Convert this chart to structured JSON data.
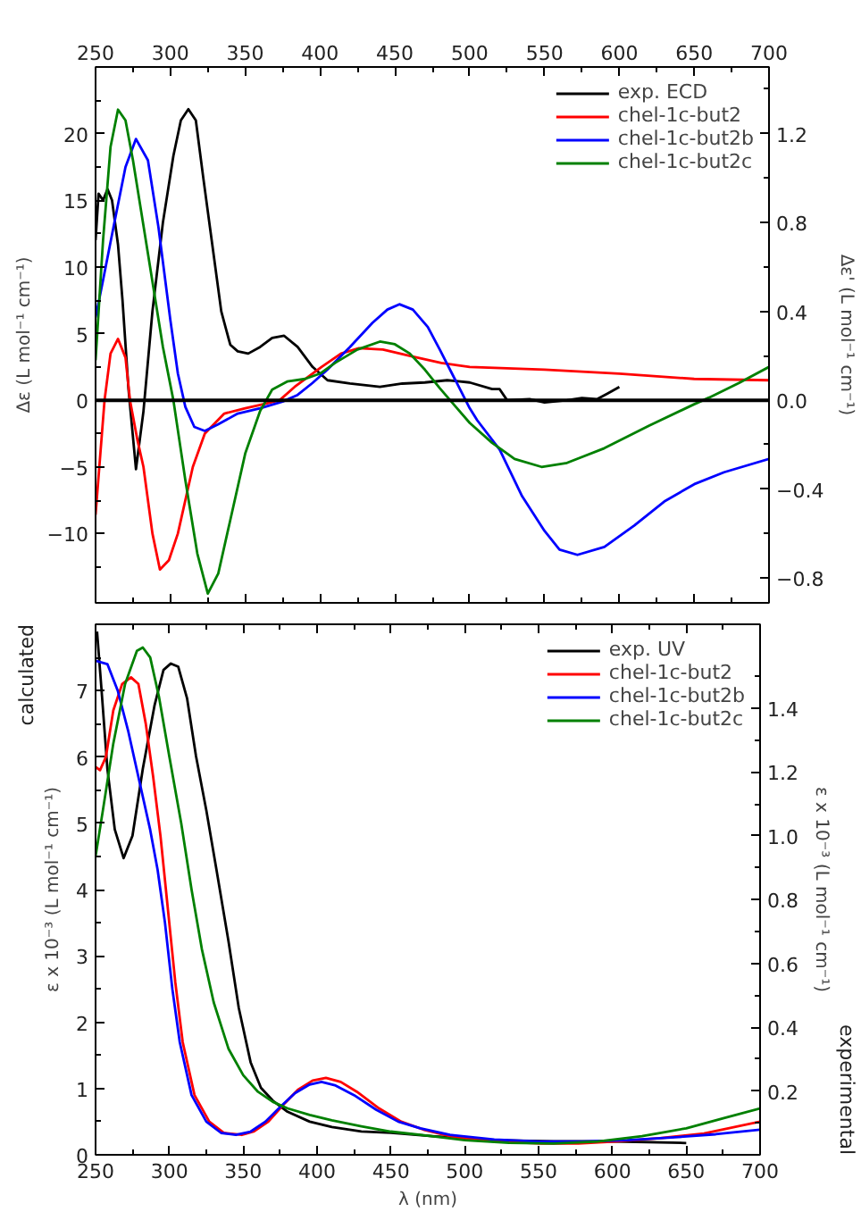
{
  "chart_data": [
    {
      "type": "line",
      "ylabel": "Δε (L mol⁻¹ cm⁻¹)",
      "y2label": "Δε' (L mol⁻¹ cm⁻¹)",
      "xlim": [
        250,
        700
      ],
      "xticks": [
        250,
        300,
        350,
        400,
        450,
        500,
        550,
        600,
        650,
        700
      ],
      "ylim": [
        -15.2,
        25
      ],
      "yticks": [
        -10,
        -5,
        0,
        5,
        10,
        15,
        20
      ],
      "y2lim": [
        -0.912,
        1.5
      ],
      "y2ticks": [
        -0.8,
        -0.4,
        {
          "value": 0,
          "label": "0.0"
        },
        0.4,
        0.8,
        1.2
      ],
      "legend": "top right",
      "ref_lines": [
        {
          "axis": "y",
          "value": 0,
          "color": "#000000"
        }
      ],
      "series": [
        {
          "name": "exp. ECD",
          "color": "#000000",
          "axis": "y2",
          "x": [
            250,
            252,
            255,
            258,
            261,
            265,
            268,
            272,
            277,
            282,
            288,
            295,
            302,
            307,
            312,
            317,
            322,
            328,
            334,
            340,
            345,
            352,
            360,
            368,
            376,
            385,
            395,
            405,
            420,
            440,
            455,
            470,
            485,
            500,
            515,
            520,
            525,
            540,
            550,
            565,
            575,
            585,
            592,
            600
          ],
          "values": [
            0.72,
            0.93,
            0.9,
            0.95,
            0.9,
            0.7,
            0.45,
            0.05,
            -0.31,
            -0.05,
            0.4,
            0.8,
            1.1,
            1.26,
            1.31,
            1.26,
            1.0,
            0.7,
            0.4,
            0.25,
            0.22,
            0.21,
            0.24,
            0.28,
            0.29,
            0.24,
            0.15,
            0.09,
            0.075,
            0.06,
            0.075,
            0.08,
            0.09,
            0.08,
            0.05,
            0.05,
            0.0,
            0.005,
            -0.01,
            0.0,
            0.01,
            0.005,
            0.03,
            0.06
          ]
        },
        {
          "name": "chel-1c-but2",
          "color": "#ff0000",
          "x": [
            250,
            256,
            260,
            265,
            270,
            273,
            278,
            282,
            288,
            293,
            299,
            305,
            315,
            323,
            336,
            350,
            362,
            373,
            383,
            401,
            414,
            426,
            442,
            461,
            481,
            500,
            550,
            600,
            650,
            700
          ],
          "values": [
            -8.6,
            0,
            3.5,
            4.6,
            3.2,
            0,
            -3,
            -5,
            -10,
            -12.7,
            -12,
            -10,
            -5,
            -2.5,
            -1,
            -0.6,
            -0.3,
            0,
            1,
            2.5,
            3.5,
            3.9,
            3.8,
            3.3,
            2.8,
            2.5,
            2.3,
            2.0,
            1.6,
            1.5
          ]
        },
        {
          "name": "chel-1c-but2b",
          "color": "#0000ff",
          "x": [
            250,
            255,
            262,
            270,
            277,
            285,
            292,
            300,
            305,
            310,
            316,
            323,
            332,
            345,
            360,
            375,
            385,
            395,
            405,
            420,
            435,
            445,
            453,
            462,
            472,
            480,
            490,
            500,
            505,
            520,
            535,
            550,
            560,
            572,
            590,
            610,
            630,
            650,
            670,
            700
          ],
          "values": [
            6.2,
            9,
            13,
            17.5,
            19.6,
            18,
            13,
            6,
            2,
            -0.5,
            -2,
            -2.3,
            -1.8,
            -1,
            -0.6,
            -0.1,
            0.4,
            1.3,
            2.3,
            4,
            5.8,
            6.8,
            7.2,
            6.8,
            5.5,
            3.8,
            1.6,
            -0.6,
            -1.5,
            -3.7,
            -7.2,
            -9.8,
            -11.2,
            -11.6,
            -11,
            -9.4,
            -7.6,
            -6.3,
            -5.4,
            -4.4
          ]
        },
        {
          "name": "chel-1c-but2c",
          "color": "#008000",
          "x": [
            250,
            255,
            260,
            265,
            270,
            275,
            285,
            295,
            302,
            310,
            318,
            325,
            332,
            340,
            350,
            360,
            368,
            378,
            390,
            400,
            410,
            425,
            440,
            450,
            460,
            470,
            480,
            490,
            500,
            515,
            530,
            548,
            565,
            590,
            620,
            650,
            660,
            680,
            700
          ],
          "values": [
            3,
            12,
            19,
            21.8,
            21,
            18,
            11,
            4,
            0,
            -6,
            -11.5,
            -14.5,
            -13,
            -9,
            -4,
            -0.8,
            0.8,
            1.4,
            1.6,
            2.0,
            2.8,
            3.8,
            4.4,
            4.2,
            3.5,
            2.3,
            0.9,
            -0.4,
            -1.7,
            -3.2,
            -4.4,
            -5.0,
            -4.7,
            -3.6,
            -1.9,
            -0.3,
            0.2,
            1.3,
            2.5
          ]
        }
      ]
    },
    {
      "type": "line",
      "xlabel": "λ (nm)",
      "ylabel": "ε x 10⁻³ (L mol⁻¹ cm⁻¹)",
      "y2label": "ε x 10⁻³ (L mol⁻¹ cm⁻¹)",
      "xlim": [
        250,
        700
      ],
      "xticks": [
        250,
        300,
        350,
        400,
        450,
        500,
        550,
        600,
        650,
        700
      ],
      "ylim": [
        0,
        8.0
      ],
      "yticks": [
        0,
        1,
        2,
        3,
        4,
        5,
        6,
        7
      ],
      "y2lim": [
        0,
        1.663
      ],
      "y2ticks": [
        0.2,
        0.4,
        0.6,
        0.8,
        {
          "value": 1,
          "label": "1.0"
        },
        1.2,
        1.4
      ],
      "legend": "top right",
      "annotations": [
        "calculated",
        "experimental"
      ],
      "series": [
        {
          "name": "exp. UV",
          "color": "#000000",
          "axis": "y2",
          "x": [
            251,
            254,
            258,
            263,
            269,
            275,
            282,
            290,
            296,
            301,
            306,
            312,
            318,
            325,
            332,
            340,
            347,
            355,
            362,
            370,
            380,
            395,
            410,
            430,
            450,
            480,
            520,
            560,
            600,
            650
          ],
          "values": [
            1.64,
            1.46,
            1.21,
            1.02,
            0.93,
            1.0,
            1.21,
            1.41,
            1.52,
            1.54,
            1.53,
            1.43,
            1.25,
            1.08,
            0.89,
            0.67,
            0.46,
            0.29,
            0.21,
            0.17,
            0.135,
            0.104,
            0.087,
            0.073,
            0.069,
            0.058,
            0.046,
            0.042,
            0.042,
            0.037
          ]
        },
        {
          "name": "chel-1c-but2",
          "color": "#ff0000",
          "x": [
            250,
            253,
            257,
            262,
            268,
            274,
            279,
            284,
            289,
            294,
            299,
            304,
            309,
            317,
            327,
            337,
            349,
            357,
            367,
            377,
            387,
            397,
            406,
            416,
            427,
            442,
            457,
            472,
            492,
            522,
            552,
            577,
            602,
            632,
            662,
            700
          ],
          "values": [
            5.85,
            5.8,
            6.0,
            6.7,
            7.1,
            7.2,
            7.1,
            6.5,
            5.7,
            4.8,
            3.7,
            2.6,
            1.7,
            0.9,
            0.5,
            0.33,
            0.3,
            0.35,
            0.5,
            0.75,
            0.98,
            1.12,
            1.16,
            1.1,
            0.95,
            0.7,
            0.5,
            0.38,
            0.27,
            0.2,
            0.17,
            0.17,
            0.2,
            0.25,
            0.32,
            0.5
          ]
        },
        {
          "name": "chel-1c-but2b",
          "color": "#0000ff",
          "x": [
            250,
            258,
            265,
            272,
            280,
            287,
            292,
            297,
            302,
            307,
            315,
            325,
            335,
            345,
            355,
            365,
            375,
            385,
            395,
            403,
            412,
            425,
            440,
            455,
            470,
            490,
            520,
            550,
            580,
            610,
            640,
            670,
            700
          ],
          "values": [
            7.45,
            7.4,
            7.0,
            6.4,
            5.6,
            4.9,
            4.3,
            3.5,
            2.5,
            1.7,
            0.9,
            0.5,
            0.33,
            0.3,
            0.35,
            0.5,
            0.72,
            0.93,
            1.06,
            1.1,
            1.05,
            0.9,
            0.68,
            0.5,
            0.4,
            0.3,
            0.23,
            0.2,
            0.2,
            0.22,
            0.26,
            0.31,
            0.38
          ]
        },
        {
          "name": "chel-1c-but2c",
          "color": "#008000",
          "x": [
            250,
            255,
            262,
            270,
            278,
            282,
            287,
            293,
            300,
            308,
            315,
            322,
            330,
            340,
            350,
            360,
            370,
            380,
            395,
            410,
            430,
            450,
            470,
            500,
            530,
            560,
            590,
            620,
            650,
            675,
            700
          ],
          "values": [
            4.5,
            5.2,
            6.2,
            7.1,
            7.6,
            7.65,
            7.5,
            6.9,
            6.0,
            5.0,
            4.0,
            3.1,
            2.3,
            1.6,
            1.2,
            0.95,
            0.8,
            0.7,
            0.6,
            0.52,
            0.43,
            0.35,
            0.3,
            0.22,
            0.18,
            0.17,
            0.2,
            0.28,
            0.4,
            0.55,
            0.7
          ]
        }
      ]
    }
  ]
}
